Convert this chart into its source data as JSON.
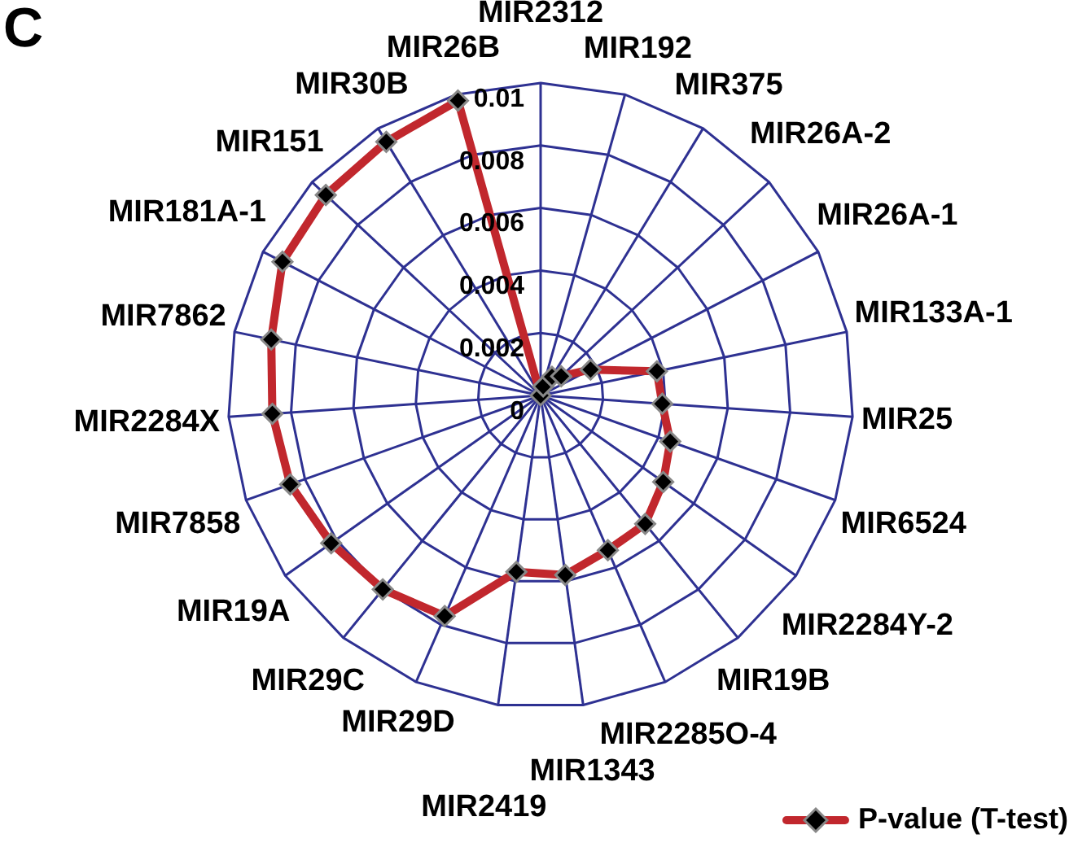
{
  "chart_data": {
    "type": "radar",
    "annotations": [
      "C"
    ],
    "categories": [
      "MIR2312",
      "MIR192",
      "MIR375",
      "MIR26A-2",
      "MIR26A-1",
      "MIR133A-1",
      "MIR25",
      "MIR6524",
      "MIR2284Y-2",
      "MIR19B",
      "MIR2285O-4",
      "MIR1343",
      "MIR2419",
      "MIR29D",
      "MIR29C",
      "MIR19A",
      "MIR7858",
      "MIR2284X",
      "MIR7862",
      "MIR181A-1",
      "MIR151",
      "MIR30B",
      "MIR26B"
    ],
    "series": [
      {
        "name": "P-value (T-test)",
        "color": "#c1272d",
        "values": [
          0,
          0.0003,
          0.0007,
          0.0009,
          0.0018,
          0.0038,
          0.0039,
          0.0044,
          0.0048,
          0.0053,
          0.0054,
          0.0058,
          0.0057,
          0.0077,
          0.008,
          0.0082,
          0.0085,
          0.0086,
          0.0088,
          0.0093,
          0.0094,
          0.0095,
          0.0098
        ]
      }
    ],
    "ylim": [
      0,
      0.01
    ],
    "yticks": [
      0,
      0.002,
      0.004,
      0.006,
      0.008,
      0.01
    ],
    "grid": true,
    "legend": "bottom right",
    "marker": "diamond"
  }
}
